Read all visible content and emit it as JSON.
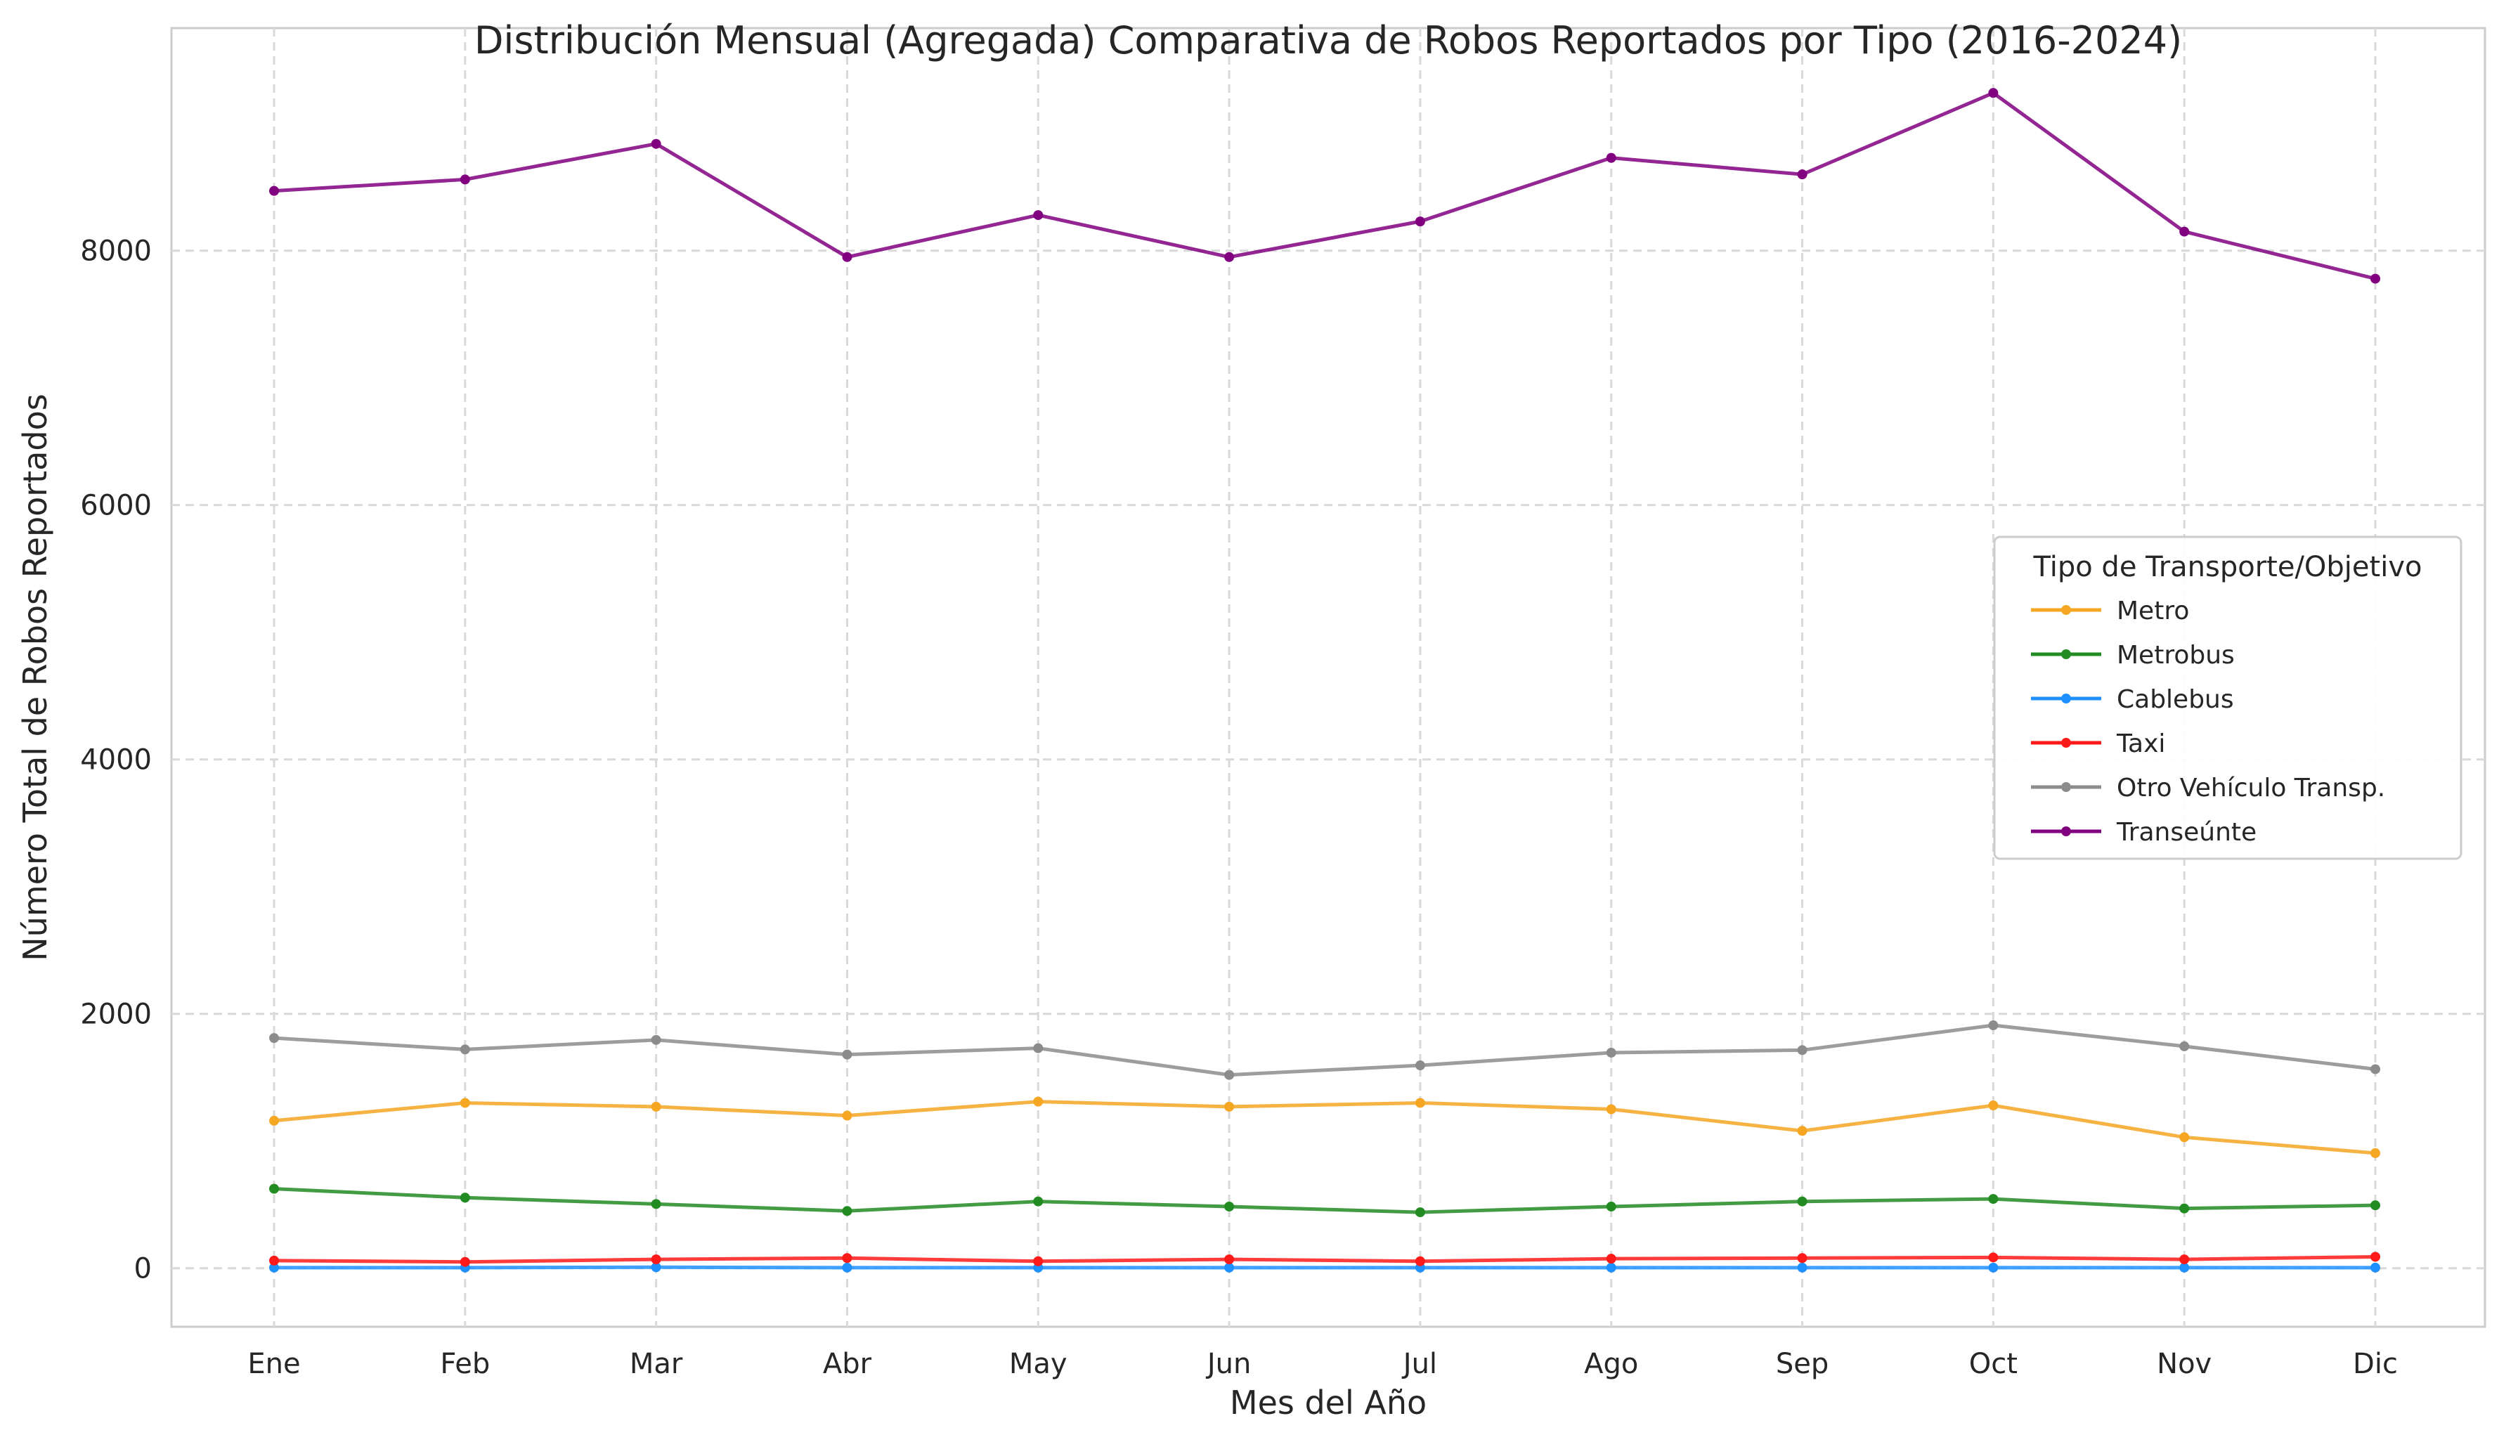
{
  "chart_data": {
    "type": "line",
    "title": "Distribución Mensual (Agregada) Comparativa de Robos Reportados por Tipo (2016-2024)",
    "xlabel": "Mes del Año",
    "ylabel": "Número Total de Robos Reportados",
    "categories": [
      "Ene",
      "Feb",
      "Mar",
      "Abr",
      "May",
      "Jun",
      "Jul",
      "Ago",
      "Sep",
      "Oct",
      "Nov",
      "Dic"
    ],
    "ylim": [
      -460,
      9750
    ],
    "yticks": [
      0,
      2000,
      4000,
      6000,
      8000
    ],
    "grid": true,
    "legend": {
      "title": "Tipo de Transporte/Objetivo",
      "placement": "center-right"
    },
    "series": [
      {
        "name": "Metro",
        "color": "#f5a623",
        "values": [
          1160,
          1300,
          1270,
          1200,
          1310,
          1270,
          1300,
          1250,
          1080,
          1280,
          1030,
          905
        ]
      },
      {
        "name": "Metrobus",
        "color": "#228b22",
        "values": [
          625,
          555,
          505,
          450,
          525,
          485,
          440,
          485,
          525,
          545,
          470,
          495
        ]
      },
      {
        "name": "Cablebus",
        "color": "#1e90ff",
        "values": [
          5,
          5,
          8,
          5,
          5,
          5,
          5,
          5,
          5,
          5,
          5,
          5
        ]
      },
      {
        "name": "Taxi",
        "color": "#ff1a1a",
        "values": [
          60,
          50,
          70,
          80,
          55,
          70,
          55,
          75,
          80,
          85,
          70,
          90
        ]
      },
      {
        "name": "Otro Vehículo Transp.",
        "color": "#8c8c8c",
        "values": [
          1810,
          1720,
          1795,
          1680,
          1730,
          1520,
          1595,
          1695,
          1715,
          1910,
          1745,
          1565
        ]
      },
      {
        "name": "Transeúnte",
        "color": "#800080",
        "values": [
          8470,
          8560,
          8840,
          7950,
          8280,
          7950,
          8230,
          8730,
          8600,
          9240,
          8150,
          7780
        ]
      }
    ]
  }
}
